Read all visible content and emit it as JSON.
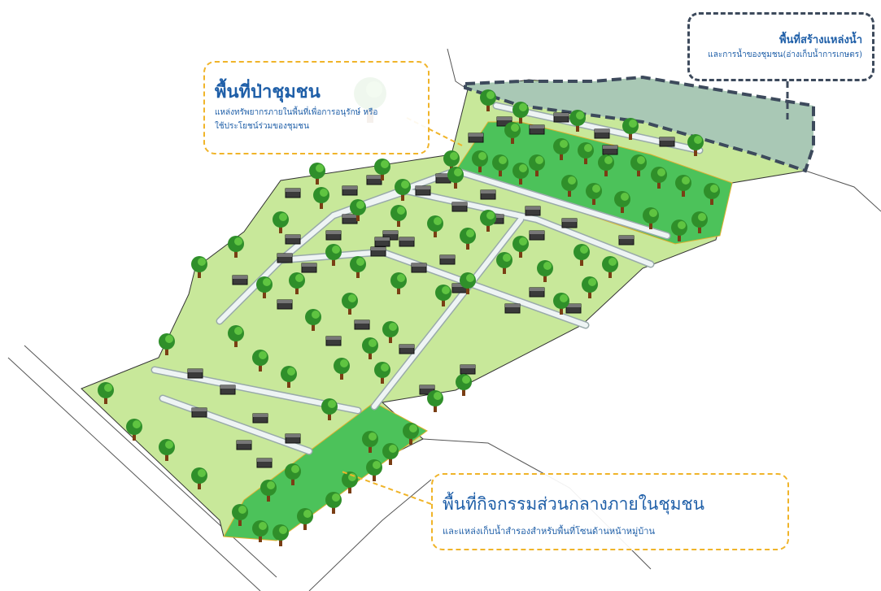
{
  "forest_callout": {
    "title": "พื้นที่ป่าชุมชน",
    "lines": [
      "แหล่งทรัพยากรภายในพื้นที่เพื่อการอนุรักษ์ หรือ",
      "ใช้ประโยชน์ร่วมของชุมชน"
    ]
  },
  "water_callout": {
    "title": "พื้นที่สร้างแหล่งน้ำ",
    "lines": [
      "และการน้ำของชุมชน(อ่างเก็บน้ำการเกษตร)"
    ]
  },
  "common_callout": {
    "title": "พื้นที่กิจกรรมส่วนกลางภายในชุมชน",
    "lines": [
      "และแหล่งเก็บน้ำสำรองสำหรับพื้นที่โซนด้านหน้าหมู่บ้าน"
    ]
  }
}
